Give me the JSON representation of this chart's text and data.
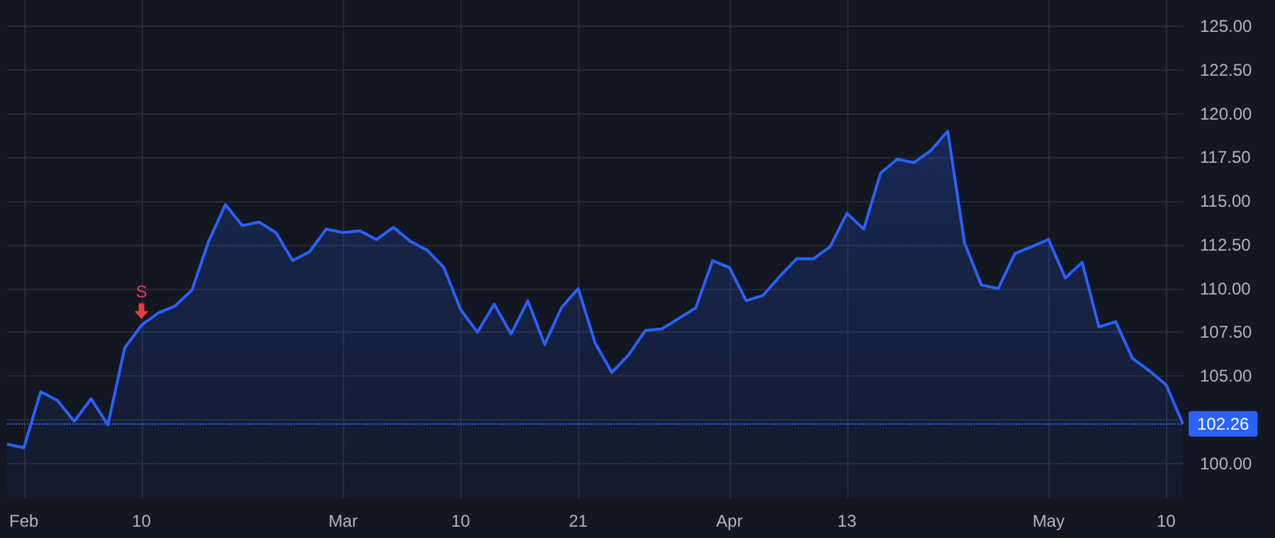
{
  "chart_data": {
    "type": "area",
    "categories": [
      null,
      "Feb",
      null,
      null,
      null,
      null,
      null,
      null,
      "10",
      null,
      null,
      null,
      null,
      null,
      null,
      null,
      null,
      null,
      null,
      null,
      "Mar",
      null,
      null,
      null,
      null,
      null,
      null,
      "10",
      null,
      null,
      null,
      null,
      null,
      null,
      "21",
      null,
      null,
      null,
      null,
      null,
      null,
      null,
      null,
      "Apr",
      null,
      null,
      null,
      null,
      null,
      null,
      "13",
      null,
      null,
      null,
      null,
      null,
      null,
      null,
      null,
      null,
      null,
      null,
      "May",
      null,
      null,
      null,
      null,
      null,
      null,
      "10",
      null
    ],
    "series": [
      {
        "color": "#2962ff",
        "values": [
          101.1,
          100.9,
          104.1,
          103.6,
          102.4,
          103.7,
          102.2,
          106.6,
          107.9,
          108.6,
          109.0,
          109.9,
          112.7,
          114.8,
          113.6,
          113.8,
          113.2,
          111.6,
          112.1,
          113.4,
          113.2,
          113.3,
          112.8,
          113.5,
          112.7,
          112.2,
          111.2,
          108.8,
          107.5,
          109.1,
          107.4,
          109.3,
          106.8,
          108.9,
          110.0,
          106.9,
          105.2,
          106.2,
          107.6,
          107.7,
          108.3,
          108.9,
          111.6,
          111.2,
          109.3,
          109.6,
          110.7,
          111.7,
          111.7,
          112.4,
          114.3,
          113.4,
          116.6,
          117.4,
          117.2,
          117.9,
          119.0,
          112.6,
          110.2,
          110.0,
          112.0,
          112.4,
          112.8,
          110.6,
          111.5,
          107.8,
          108.1,
          106.0,
          105.3,
          104.5,
          102.26
        ]
      }
    ],
    "ylim": [
      98,
      126.5
    ],
    "yticks": [
      {
        "value": 100,
        "label": "100.00"
      },
      {
        "value": 102.5,
        "label": null
      },
      {
        "value": 105,
        "label": "105.00"
      },
      {
        "value": 107.5,
        "label": "107.50"
      },
      {
        "value": 110,
        "label": "110.00"
      },
      {
        "value": 112.5,
        "label": "112.50"
      },
      {
        "value": 115,
        "label": "115.00"
      },
      {
        "value": 117.5,
        "label": "117.50"
      },
      {
        "value": 120,
        "label": "120.00"
      },
      {
        "value": 122.5,
        "label": "122.50"
      },
      {
        "value": 125,
        "label": "125.00"
      }
    ],
    "grid": true,
    "ref_lines": [
      {
        "axis": "y",
        "value": 102.26,
        "label": "102.26",
        "color": "#2962ff",
        "line_style": "dotted"
      }
    ],
    "annotations": [
      {
        "text": "S",
        "x": "10",
        "y": 107.9
      }
    ]
  }
}
